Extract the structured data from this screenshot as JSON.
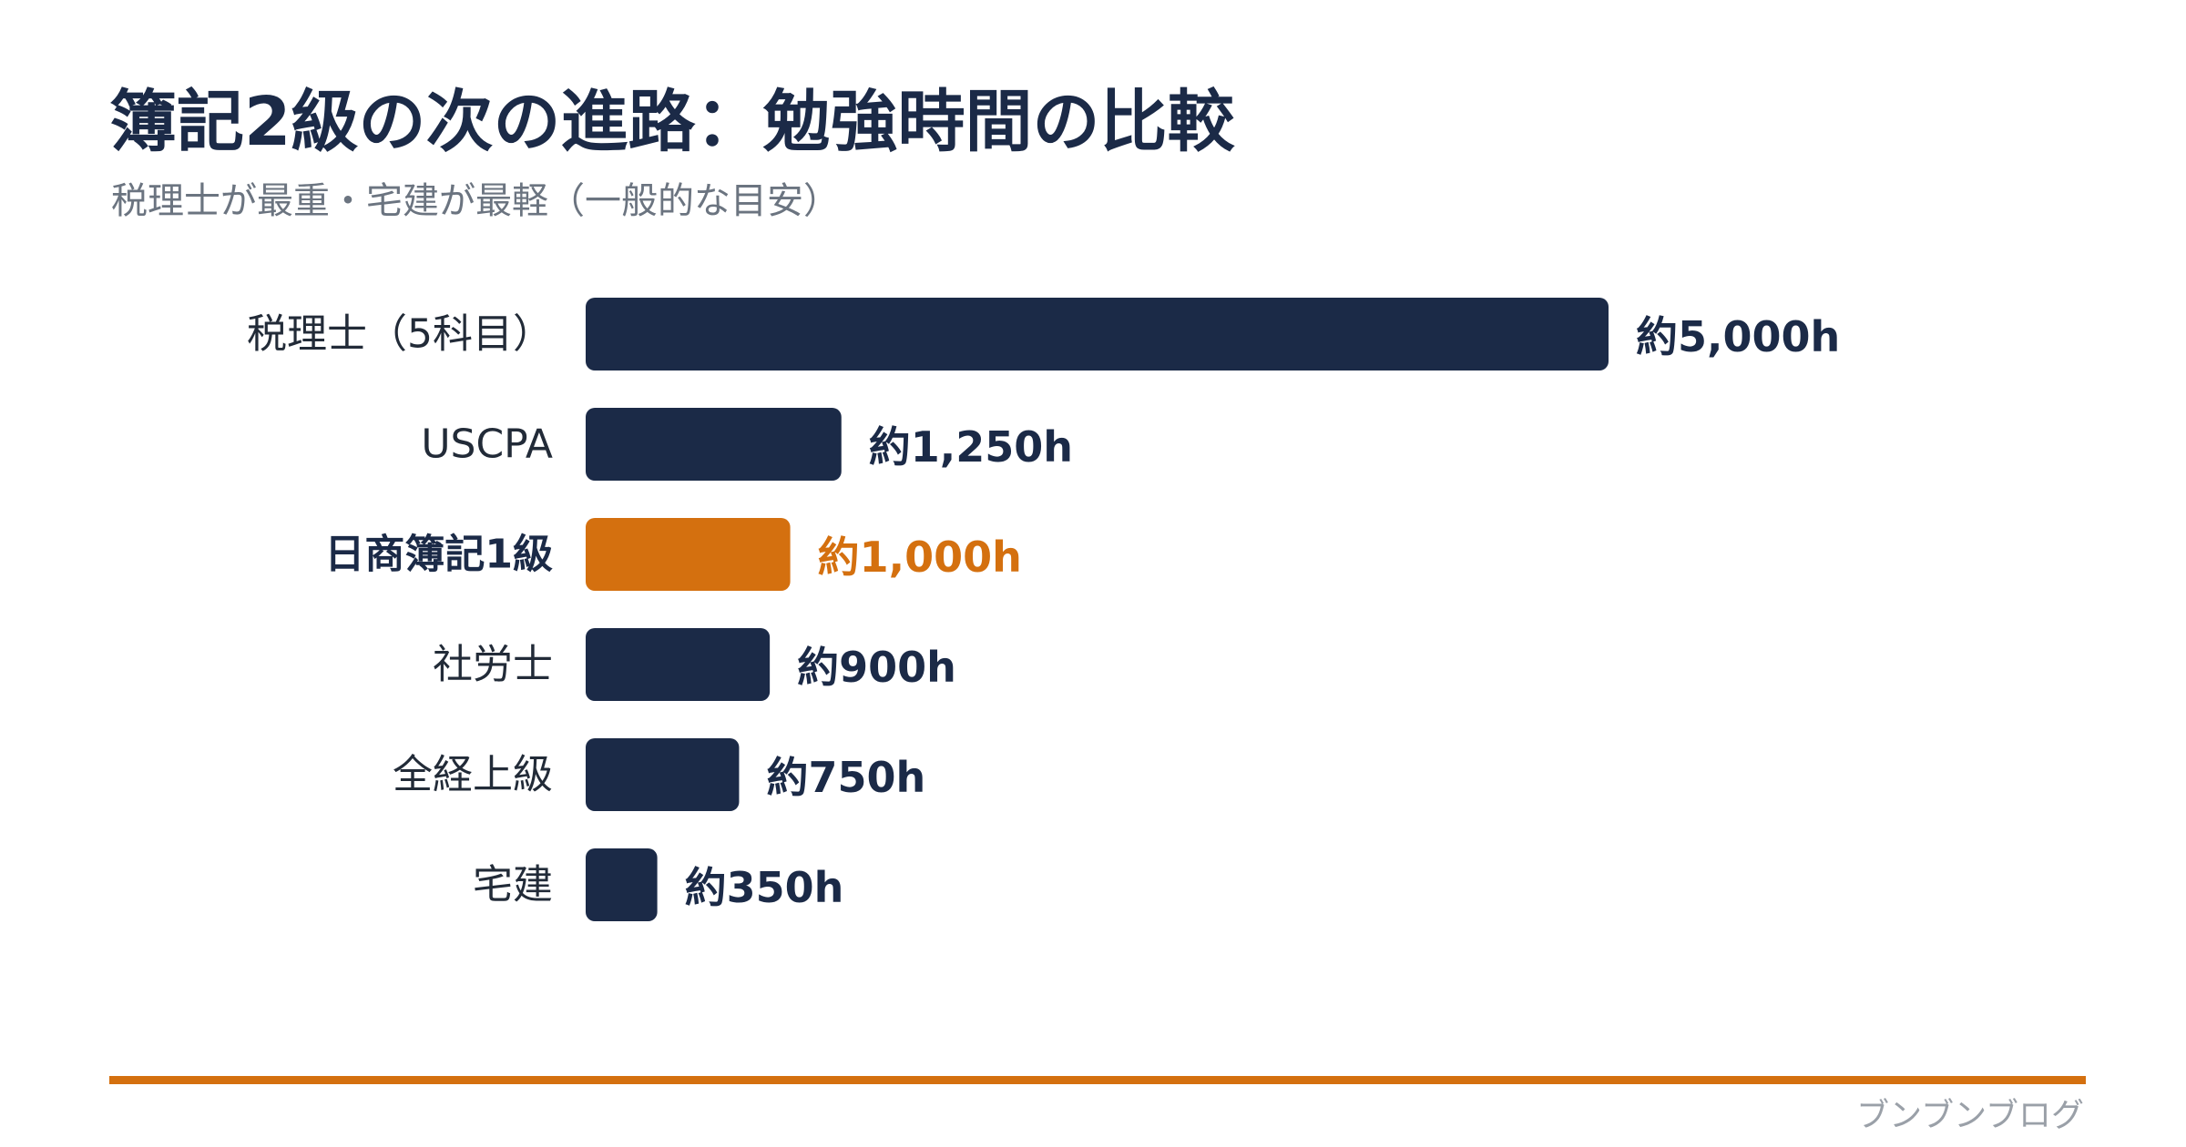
{
  "header": {
    "title": "簿記2級の次の進路：勉強時間の比較",
    "subtitle": "税理士が最重・宅建が最軽（一般的な目安）"
  },
  "chart_data": {
    "type": "bar",
    "orientation": "horizontal",
    "title": "簿記2級の次の進路：勉強時間の比較",
    "subtitle": "税理士が最重・宅建が最軽（一般的な目安）",
    "categories": [
      "税理士（5科目）",
      "USCPA",
      "日商簿記1級",
      "社労士",
      "全経上級",
      "宅建"
    ],
    "values": [
      5000,
      1250,
      1000,
      900,
      750,
      350
    ],
    "value_labels": [
      "約5,000h",
      "約1,250h",
      "約1,000h",
      "約900h",
      "約750h",
      "約350h"
    ],
    "highlight_index": 2,
    "xlim": [
      0,
      5000
    ],
    "grid": false,
    "legend": "none",
    "colors": {
      "default": "#1b2a47",
      "highlight": "#d4700f"
    }
  },
  "footer": {
    "credit": "ブンブンブログ"
  },
  "colors": {
    "accent": "#d4700f",
    "navy": "#1b2a47"
  }
}
